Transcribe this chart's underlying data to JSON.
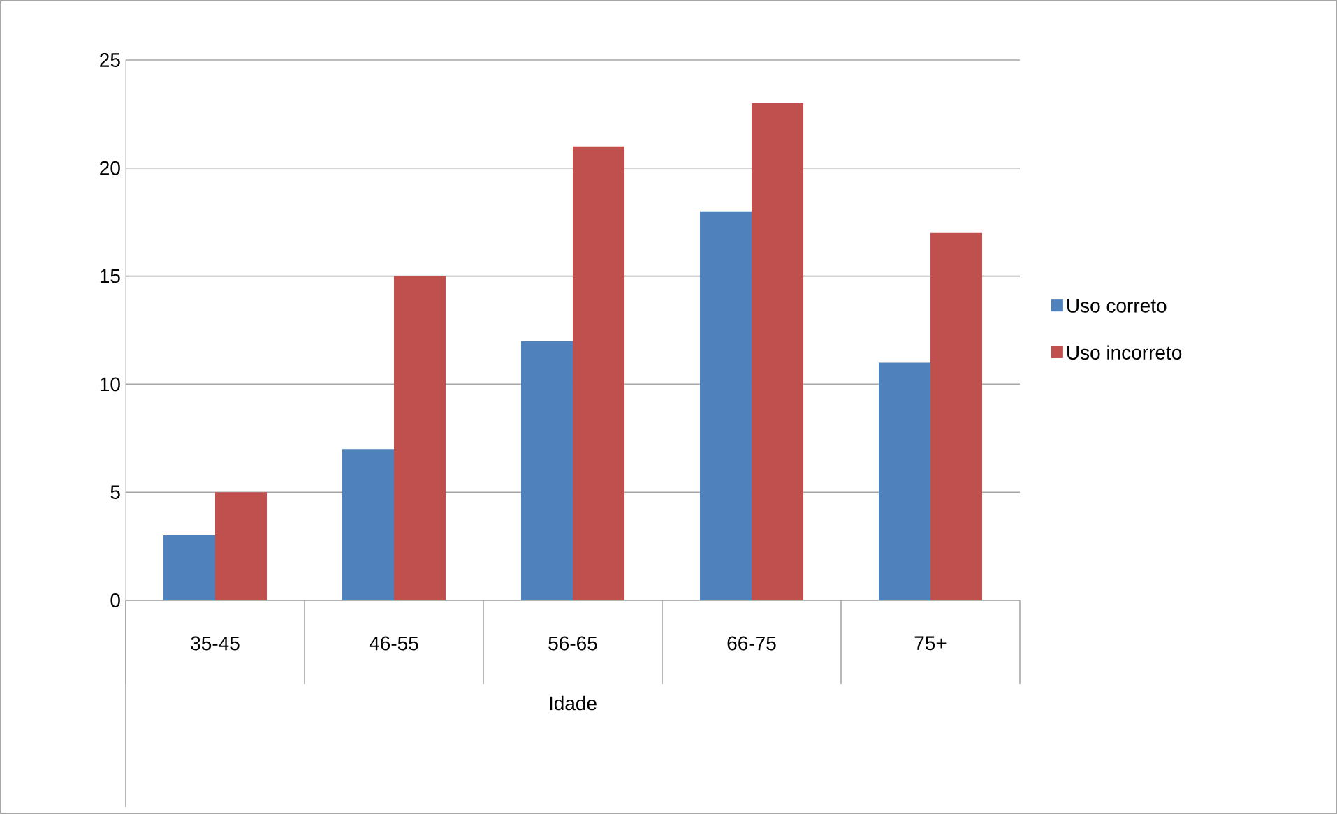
{
  "chart_data": {
    "type": "bar",
    "xlabel": "Idade",
    "categories": [
      "35-45",
      "46-55",
      "56-65",
      "66-75",
      "75+"
    ],
    "series": [
      {
        "name": "Uso correto",
        "color": "#4f81bd",
        "values": [
          3,
          7,
          12,
          18,
          11
        ]
      },
      {
        "name": "Uso incorreto",
        "color": "#c0504d",
        "values": [
          5,
          15,
          21,
          23,
          17
        ]
      }
    ],
    "ylim": [
      0,
      25
    ],
    "yticks": [
      0,
      5,
      10,
      15,
      20,
      25
    ],
    "grid": "y",
    "legend": "right"
  }
}
